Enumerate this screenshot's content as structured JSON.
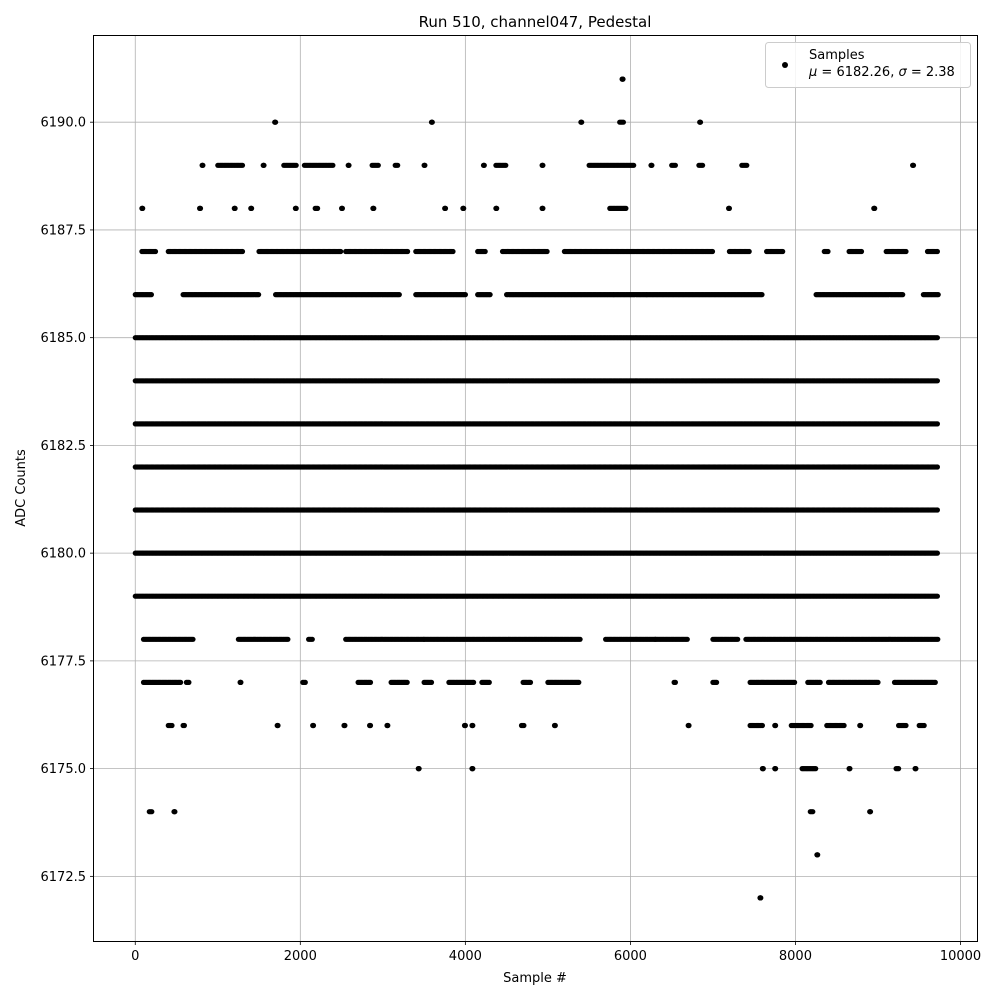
{
  "chart_data": {
    "type": "scatter",
    "title": "Run 510, channel047, Pedestal",
    "xlabel": "Sample #",
    "ylabel": "ADC Counts",
    "xlim": [
      -500,
      10200
    ],
    "ylim": [
      6171.0,
      6192.0
    ],
    "x_ticks": [
      0,
      2000,
      4000,
      6000,
      8000,
      10000
    ],
    "x_tick_labels": [
      "0",
      "2000",
      "4000",
      "6000",
      "8000",
      "10000"
    ],
    "y_ticks": [
      6172.5,
      6175.0,
      6177.5,
      6180.0,
      6182.5,
      6185.0,
      6187.5,
      6190.0
    ],
    "y_tick_labels": [
      "6172.5",
      "6175.0",
      "6177.5",
      "6180.0",
      "6182.5",
      "6185.0",
      "6187.5",
      "6190.0"
    ],
    "grid": true,
    "marker_color": "#000000",
    "legend": {
      "placement": "upper right",
      "series_label": "Samples",
      "stats_mu_symbol": "μ",
      "stats_sigma_symbol": "σ",
      "stats_rest": " = 6182.26, ",
      "stats_end": " = 2.38"
    },
    "series": [
      {
        "name": "Samples",
        "points_by_level": [
          {
            "y": 6185,
            "x_ranges": [
              [
                0,
                9730
              ]
            ]
          },
          {
            "y": 6184,
            "x_ranges": [
              [
                0,
                9730
              ]
            ]
          },
          {
            "y": 6183,
            "x_ranges": [
              [
                0,
                9730
              ]
            ]
          },
          {
            "y": 6182,
            "x_ranges": [
              [
                0,
                9730
              ]
            ]
          },
          {
            "y": 6181,
            "x_ranges": [
              [
                0,
                9730
              ]
            ]
          },
          {
            "y": 6180,
            "x_ranges": [
              [
                0,
                9730
              ]
            ]
          },
          {
            "y": 6179,
            "x_ranges": [
              [
                0,
                9730
              ]
            ]
          },
          {
            "y": 6178,
            "x_ranges": [
              [
                100,
                700
              ],
              [
                1250,
                1850
              ],
              [
                2100,
                2150
              ],
              [
                2550,
                3500
              ],
              [
                3500,
                5400
              ],
              [
                5700,
                6300
              ],
              [
                6300,
                6700
              ],
              [
                7000,
                7300
              ],
              [
                7400,
                9730
              ]
            ]
          },
          {
            "y": 6186,
            "x_ranges": [
              [
                0,
                200
              ],
              [
                580,
                1500
              ],
              [
                1700,
                3200
              ],
              [
                3400,
                4000
              ],
              [
                4150,
                4300
              ],
              [
                4500,
                5800
              ],
              [
                5800,
                6200
              ],
              [
                6200,
                7600
              ],
              [
                8250,
                9300
              ],
              [
                9550,
                9730
              ]
            ]
          },
          {
            "y": 6187,
            "x_ranges": [
              [
                80,
                250
              ],
              [
                400,
                1300
              ],
              [
                1500,
                2500
              ],
              [
                2550,
                3300
              ],
              [
                3400,
                3850
              ],
              [
                4150,
                4250
              ],
              [
                4450,
                5000
              ],
              [
                5200,
                6500
              ],
              [
                6500,
                7000
              ],
              [
                7200,
                7450
              ],
              [
                7650,
                7850
              ],
              [
                8350,
                8400
              ],
              [
                8650,
                8800
              ],
              [
                9100,
                9350
              ],
              [
                9600,
                9730
              ]
            ]
          },
          {
            "y": 6177,
            "x_ranges": [
              [
                100,
                550
              ],
              [
                620,
                650
              ],
              [
                1270,
                1280
              ],
              [
                2030,
                2060
              ],
              [
                2700,
                2850
              ],
              [
                3100,
                3300
              ],
              [
                3500,
                3600
              ],
              [
                3800,
                4100
              ],
              [
                4200,
                4300
              ],
              [
                4700,
                4800
              ],
              [
                5000,
                5380
              ],
              [
                6530,
                6550
              ],
              [
                7000,
                7050
              ],
              [
                7450,
                8000
              ],
              [
                8150,
                8300
              ],
              [
                8400,
                9000
              ],
              [
                9200,
                9700
              ]
            ]
          },
          {
            "y": 6176,
            "x_ranges": [
              [
                400,
                450
              ],
              [
                580,
                600
              ],
              [
                1720,
                1730
              ],
              [
                2150,
                2160
              ],
              [
                2530,
                2540
              ],
              [
                2840,
                2850
              ],
              [
                3050,
                3060
              ],
              [
                3990,
                4000
              ],
              [
                4080,
                4090
              ],
              [
                4680,
                4720
              ],
              [
                5080,
                5090
              ],
              [
                6700,
                6710
              ],
              [
                7450,
                7600
              ],
              [
                7750,
                7760
              ],
              [
                7950,
                8200
              ],
              [
                8380,
                8600
              ],
              [
                8780,
                8790
              ],
              [
                9250,
                9350
              ],
              [
                9500,
                9560
              ]
            ]
          },
          {
            "y": 6188,
            "x_ranges": [
              [
                80,
                90
              ],
              [
                780,
                790
              ],
              [
                1200,
                1210
              ],
              [
                1400,
                1410
              ],
              [
                1940,
                1950
              ],
              [
                2180,
                2220
              ],
              [
                2500,
                2510
              ],
              [
                2880,
                2890
              ],
              [
                3750,
                3760
              ],
              [
                3970,
                3980
              ],
              [
                4370,
                4380
              ],
              [
                4930,
                4940
              ],
              [
                5750,
                5950
              ],
              [
                7190,
                7200
              ],
              [
                8950,
                8960
              ]
            ]
          },
          {
            "y": 6189,
            "x_ranges": [
              [
                810,
                820
              ],
              [
                1000,
                1300
              ],
              [
                1550,
                1560
              ],
              [
                1800,
                1950
              ],
              [
                2050,
                2400
              ],
              [
                2580,
                2590
              ],
              [
                2870,
                2950
              ],
              [
                3150,
                3180
              ],
              [
                3500,
                3510
              ],
              [
                4220,
                4230
              ],
              [
                4370,
                4500
              ],
              [
                4930,
                4940
              ],
              [
                5500,
                6050
              ],
              [
                6250,
                6260
              ],
              [
                6500,
                6550
              ],
              [
                6830,
                6880
              ],
              [
                7350,
                7420
              ],
              [
                9420,
                9430
              ]
            ]
          },
          {
            "y": 6175,
            "x_ranges": [
              [
                3430,
                3440
              ],
              [
                4080,
                4090
              ],
              [
                7600,
                7610
              ],
              [
                7750,
                7760
              ],
              [
                8080,
                8250
              ],
              [
                8650,
                8660
              ],
              [
                9220,
                9250
              ],
              [
                9450,
                9460
              ]
            ]
          },
          {
            "y": 6174,
            "x_ranges": [
              [
                170,
                210
              ],
              [
                470,
                480
              ],
              [
                8180,
                8220
              ],
              [
                8900,
                8910
              ]
            ]
          },
          {
            "y": 6190,
            "x_ranges": [
              [
                1690,
                1700
              ],
              [
                3590,
                3600
              ],
              [
                5400,
                5410
              ],
              [
                5870,
                5920
              ],
              [
                6840,
                6850
              ]
            ]
          },
          {
            "y": 6191,
            "x_ranges": [
              [
                5900,
                5910
              ]
            ]
          },
          {
            "y": 6173,
            "x_ranges": [
              [
                8260,
                8270
              ]
            ]
          },
          {
            "y": 6172,
            "x_ranges": [
              [
                7570,
                7580
              ]
            ]
          }
        ]
      }
    ]
  }
}
